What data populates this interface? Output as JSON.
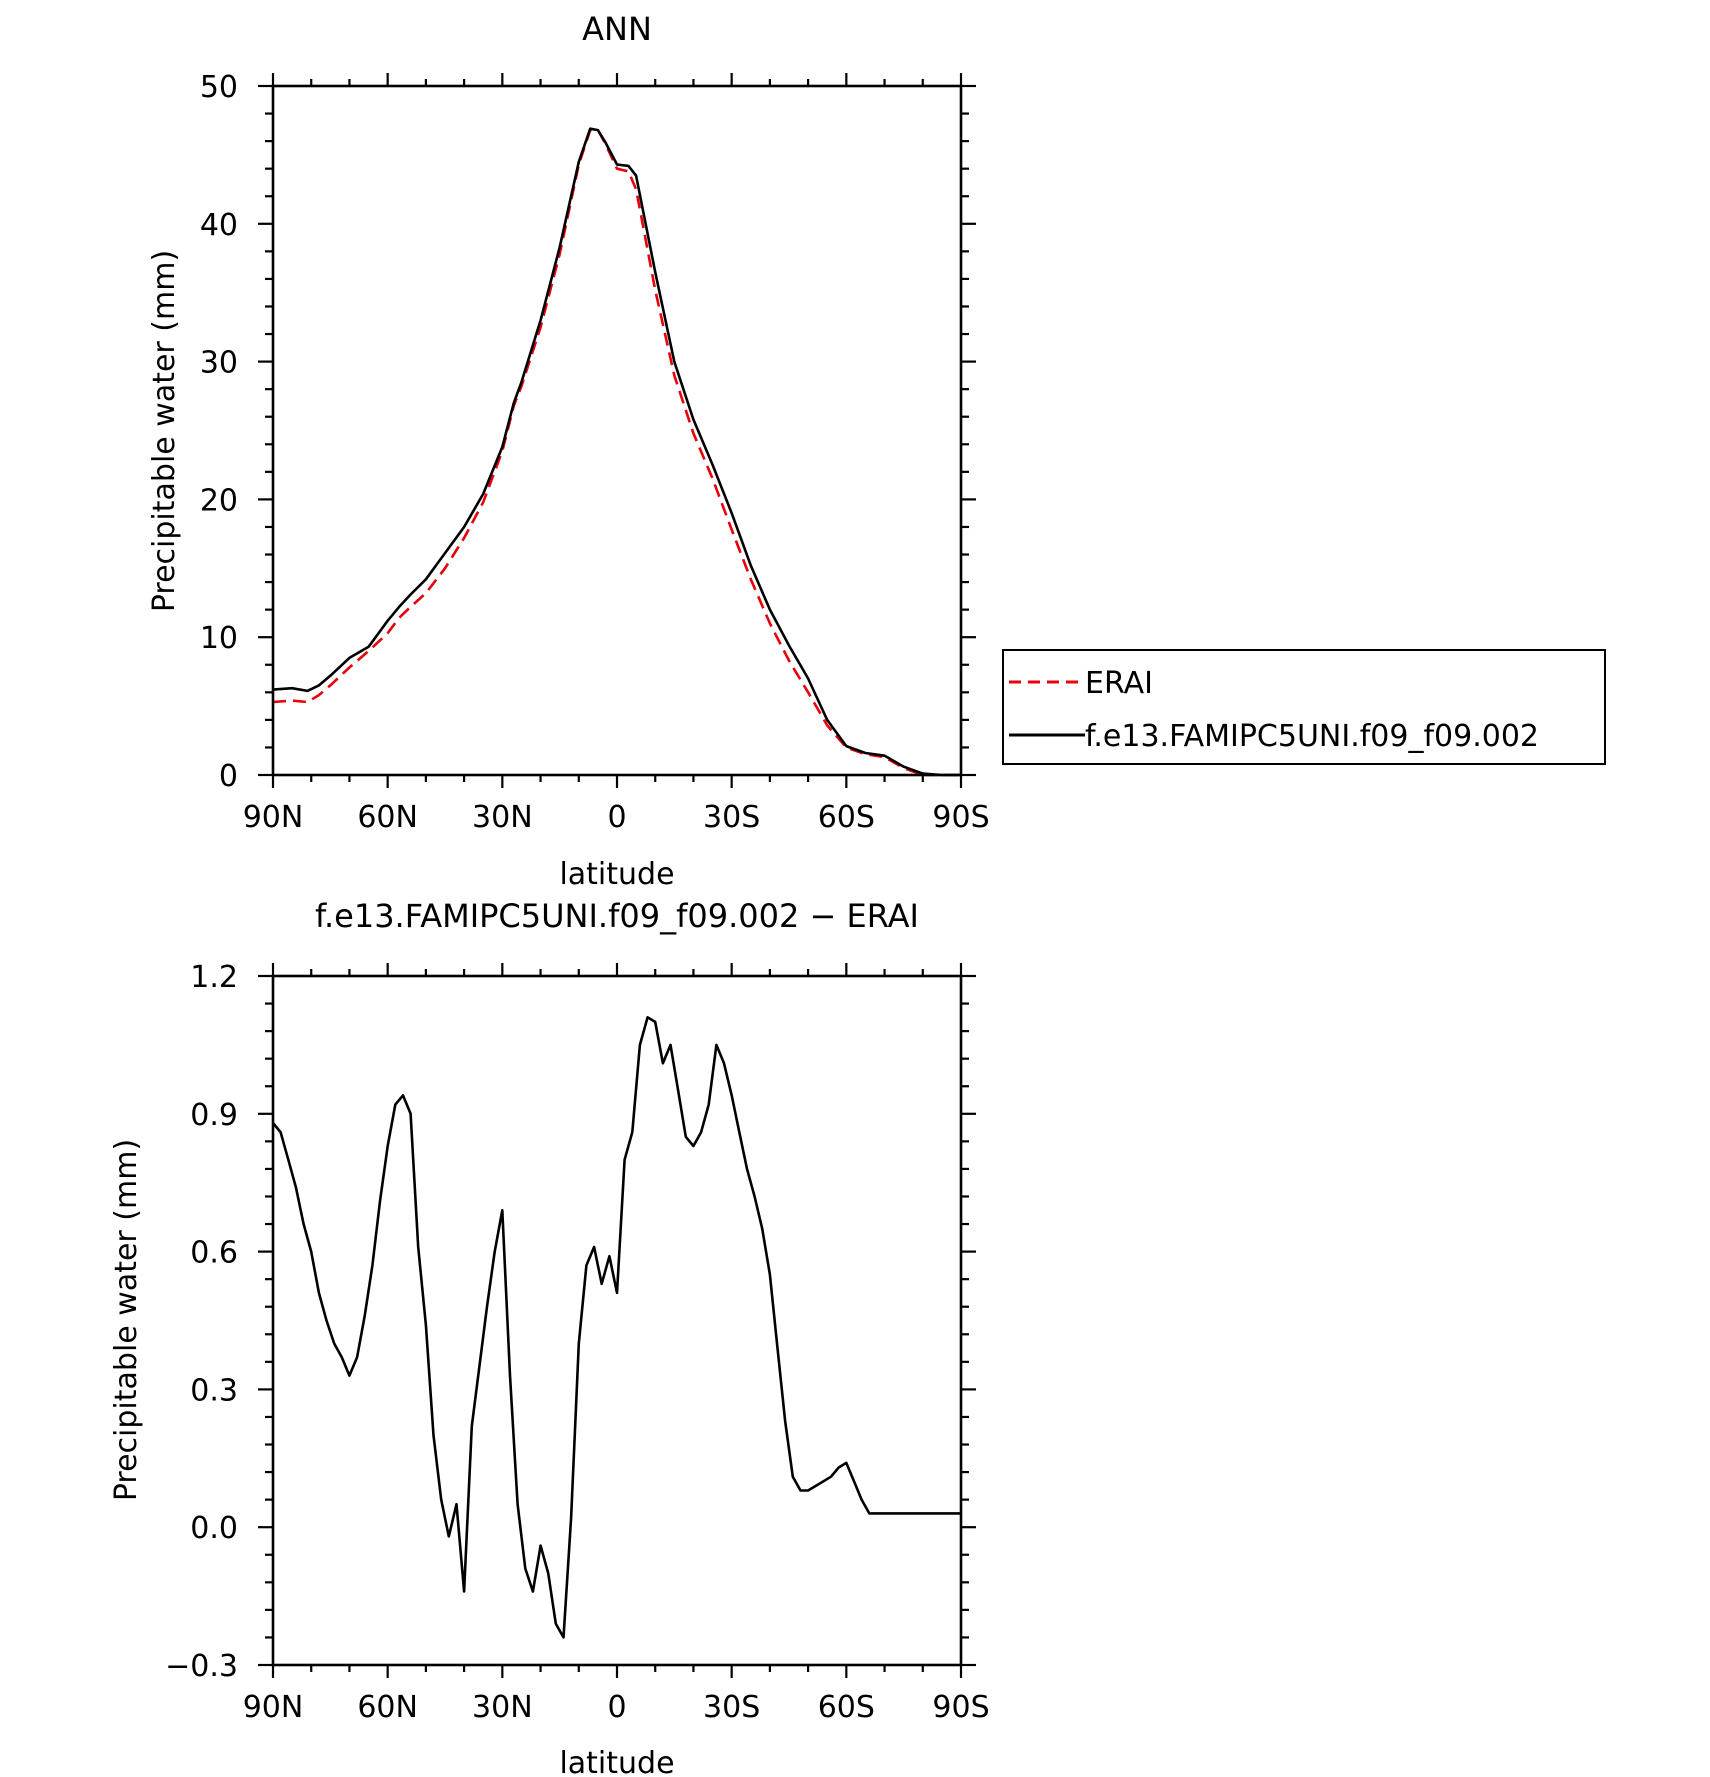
{
  "chart_data": [
    {
      "type": "line",
      "title": "ANN",
      "xlabel": "latitude",
      "ylabel": "Precipitable water (mm)",
      "xlim": [
        -90,
        90
      ],
      "ylim": [
        0,
        50
      ],
      "x_ticks": [
        -90,
        -60,
        -30,
        0,
        30,
        60,
        90
      ],
      "x_tick_labels": [
        "90N",
        "60N",
        "30N",
        "0",
        "30S",
        "60S",
        "90S"
      ],
      "y_ticks": [
        0,
        10,
        20,
        30,
        40,
        50
      ],
      "y_tick_labels": [
        "0",
        "10",
        "20",
        "30",
        "40",
        "50"
      ],
      "grid": false,
      "legend_position": "right",
      "series": [
        {
          "name": "ERAI",
          "color": "#e8000b",
          "style": "dashed",
          "x": [
            -90,
            -85,
            -81,
            -78,
            -75,
            -70,
            -65,
            -60,
            -57,
            -54,
            -50,
            -45,
            -40,
            -35,
            -30,
            -27,
            -25,
            -20,
            -15,
            -10,
            -7,
            -5,
            -3,
            0,
            3,
            5,
            10,
            15,
            20,
            25,
            30,
            35,
            40,
            45,
            50,
            55,
            60,
            65,
            70,
            75,
            80,
            85,
            90
          ],
          "y": [
            5.3,
            5.4,
            5.3,
            5.8,
            6.5,
            7.8,
            9.0,
            10.3,
            11.4,
            12.2,
            13.2,
            15.0,
            17.2,
            19.8,
            23.5,
            26.8,
            28.2,
            32.5,
            37.8,
            44.3,
            46.8,
            46.8,
            45.8,
            44.0,
            43.8,
            42.5,
            35.2,
            29.0,
            24.8,
            21.5,
            17.8,
            14.2,
            11.0,
            8.3,
            6.0,
            3.6,
            2.0,
            1.5,
            1.3,
            0.5,
            0.0,
            0.0,
            0.0
          ]
        },
        {
          "name": "f.e13.FAMIPC5UNI.f09_f09.002",
          "color": "#000000",
          "style": "solid",
          "x": [
            -90,
            -85,
            -81,
            -78,
            -75,
            -70,
            -65,
            -60,
            -57,
            -54,
            -50,
            -45,
            -40,
            -35,
            -30,
            -27,
            -25,
            -20,
            -15,
            -10,
            -7,
            -5,
            -3,
            0,
            3,
            5,
            10,
            15,
            20,
            25,
            30,
            35,
            40,
            45,
            50,
            55,
            60,
            65,
            70,
            75,
            80,
            85,
            90
          ],
          "y": [
            6.2,
            6.3,
            6.1,
            6.5,
            7.2,
            8.5,
            9.3,
            11.2,
            12.2,
            13.1,
            14.2,
            16.1,
            18.0,
            20.4,
            23.8,
            27.0,
            28.5,
            33.0,
            38.3,
            44.5,
            46.9,
            46.8,
            45.9,
            44.3,
            44.2,
            43.5,
            36.5,
            30.0,
            25.8,
            22.5,
            19.0,
            15.2,
            12.0,
            9.4,
            7.0,
            4.0,
            2.1,
            1.6,
            1.4,
            0.6,
            0.1,
            0.0,
            0.0
          ]
        }
      ]
    },
    {
      "type": "line",
      "title": "f.e13.FAMIPC5UNI.f09_f09.002 − ERAI",
      "xlabel": "latitude",
      "ylabel": "Precipitable water (mm)",
      "xlim": [
        -90,
        90
      ],
      "ylim": [
        -0.3,
        1.2
      ],
      "x_ticks": [
        -90,
        -60,
        -30,
        0,
        30,
        60,
        90
      ],
      "x_tick_labels": [
        "90N",
        "60N",
        "30N",
        "0",
        "30S",
        "60S",
        "90S"
      ],
      "y_ticks": [
        -0.3,
        0.0,
        0.3,
        0.6,
        0.9,
        1.2
      ],
      "y_tick_labels": [
        "−0.3",
        "0.0",
        "0.3",
        "0.6",
        "0.9",
        "1.2"
      ],
      "grid": false,
      "series": [
        {
          "color": "#000000",
          "style": "solid",
          "x": [
            -90,
            -88,
            -86,
            -84,
            -82,
            -80,
            -78,
            -76,
            -74,
            -72,
            -70,
            -68,
            -66,
            -64,
            -62,
            -60,
            -58,
            -56,
            -54,
            -52,
            -50,
            -48,
            -46,
            -44,
            -42,
            -40,
            -38,
            -36,
            -34,
            -32,
            -30,
            -28,
            -26,
            -24,
            -22,
            -20,
            -18,
            -16,
            -14,
            -12,
            -10,
            -8,
            -6,
            -4,
            -2,
            0,
            2,
            4,
            6,
            8,
            10,
            12,
            14,
            16,
            18,
            20,
            22,
            24,
            26,
            28,
            30,
            32,
            34,
            36,
            38,
            40,
            42,
            44,
            46,
            48,
            50,
            52,
            54,
            56,
            58,
            60,
            62,
            64,
            66,
            68,
            70,
            72,
            74,
            76,
            78,
            80,
            82,
            84,
            86,
            88,
            90
          ],
          "y": [
            0.88,
            0.86,
            0.8,
            0.74,
            0.66,
            0.6,
            0.51,
            0.45,
            0.4,
            0.37,
            0.33,
            0.37,
            0.46,
            0.57,
            0.71,
            0.83,
            0.92,
            0.94,
            0.9,
            0.61,
            0.44,
            0.2,
            0.06,
            -0.02,
            0.05,
            -0.14,
            0.22,
            0.35,
            0.48,
            0.6,
            0.69,
            0.33,
            0.05,
            -0.09,
            -0.14,
            -0.04,
            -0.1,
            -0.21,
            -0.24,
            0.02,
            0.4,
            0.57,
            0.61,
            0.53,
            0.59,
            0.51,
            0.8,
            0.86,
            1.05,
            1.11,
            1.1,
            1.01,
            1.05,
            0.95,
            0.85,
            0.83,
            0.86,
            0.92,
            1.05,
            1.01,
            0.94,
            0.86,
            0.78,
            0.72,
            0.65,
            0.55,
            0.39,
            0.23,
            0.11,
            0.08,
            0.08,
            0.09,
            0.1,
            0.11,
            0.13,
            0.14,
            0.1,
            0.06,
            0.03,
            0.03,
            0.03,
            0.03,
            0.03,
            0.03,
            0.03,
            0.03,
            0.03,
            0.03,
            0.03,
            0.03,
            0.03
          ]
        }
      ]
    }
  ]
}
